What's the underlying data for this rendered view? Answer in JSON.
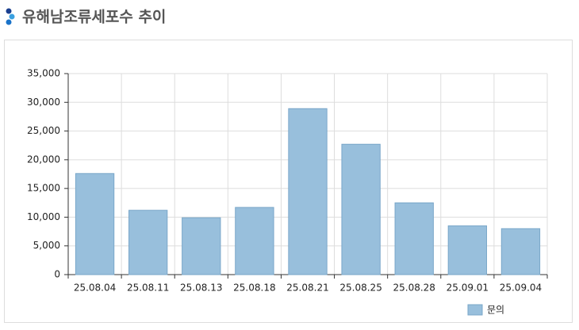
{
  "chart_data": {
    "type": "bar",
    "title": "유해남조류세포수 추이",
    "categories": [
      "25.08.04",
      "25.08.11",
      "25.08.13",
      "25.08.18",
      "25.08.21",
      "25.08.25",
      "25.08.28",
      "25.09.01",
      "25.09.04"
    ],
    "series": [
      {
        "name": "문의",
        "color": "#98bfdc",
        "values": [
          17600,
          11200,
          9900,
          11700,
          28900,
          22700,
          12500,
          8500,
          8000
        ]
      }
    ],
    "ylim": [
      0,
      35000
    ],
    "yticks": [
      0,
      {
        "value": 5000,
        "label": "5,000"
      },
      {
        "value": 10000,
        "label": "10,000"
      },
      {
        "value": 15000,
        "label": "15,000"
      },
      {
        "value": 20000,
        "label": "20,000"
      },
      {
        "value": 25000,
        "label": "25,000"
      },
      {
        "value": 30000,
        "label": "30,000"
      },
      {
        "value": 35000,
        "label": "35,000"
      }
    ],
    "grid": true,
    "legend": "bottom-right"
  }
}
